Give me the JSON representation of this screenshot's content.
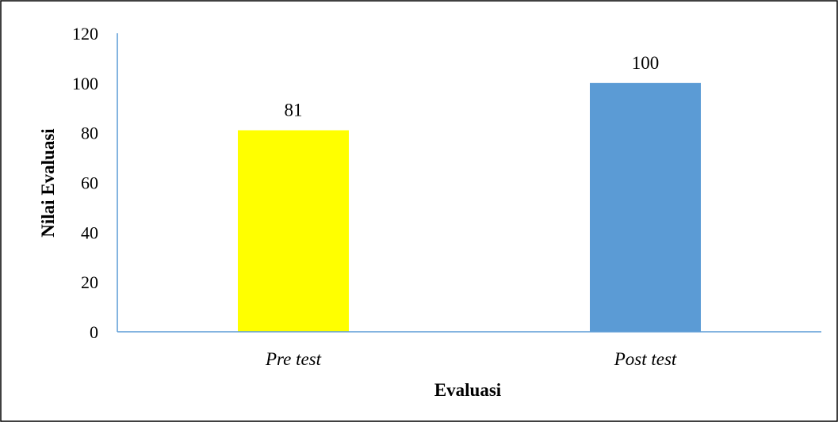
{
  "chart_data": {
    "type": "bar",
    "categories": [
      "Pre test",
      "Post test"
    ],
    "values": [
      81,
      100
    ],
    "data_labels": [
      "81",
      "100"
    ],
    "title": "",
    "xlabel": "Evaluasi",
    "ylabel": "Nilai Evaluasi",
    "ylim": [
      0,
      120
    ],
    "yticks": [
      "0",
      "20",
      "40",
      "60",
      "80",
      "100",
      "120"
    ],
    "bar_colors": [
      "#FFFF00",
      "#5B9BD5"
    ],
    "axis_color": "#5B9BD5",
    "grid": false,
    "legend": "none"
  }
}
